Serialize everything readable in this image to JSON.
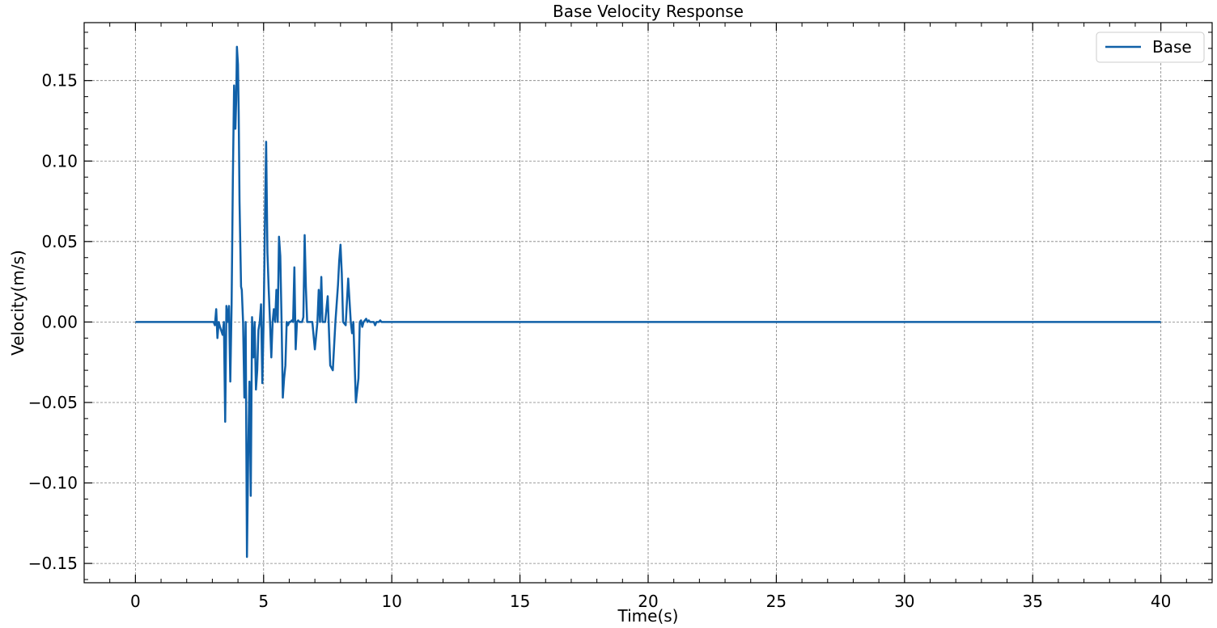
{
  "chart_data": {
    "type": "line",
    "title": "Base Velocity Response",
    "xlabel": "Time(s)",
    "ylabel": "Velocity(m/s)",
    "xlim": [
      -2,
      42
    ],
    "ylim": [
      -0.162,
      0.186
    ],
    "xticks": [
      0,
      5,
      10,
      15,
      20,
      25,
      30,
      35,
      40
    ],
    "xtick_labels": [
      "0",
      "5",
      "10",
      "15",
      "20",
      "25",
      "30",
      "35",
      "40"
    ],
    "yticks": [
      -0.15,
      -0.1,
      -0.05,
      0.0,
      0.05,
      0.1,
      0.15
    ],
    "ytick_labels": [
      "−0.15",
      "−0.10",
      "−0.05",
      "0.00",
      "0.05",
      "0.10",
      "0.15"
    ],
    "grid": true,
    "legend_position": "top-right",
    "series": [
      {
        "name": "Base",
        "color": "#1060a8",
        "x": [
          0,
          3.05,
          3.1,
          3.15,
          3.2,
          3.25,
          3.3,
          3.4,
          3.45,
          3.5,
          3.55,
          3.6,
          3.65,
          3.7,
          3.75,
          3.8,
          3.85,
          3.9,
          3.93,
          3.96,
          4.0,
          4.03,
          4.06,
          4.09,
          4.12,
          4.15,
          4.2,
          4.25,
          4.3,
          4.35,
          4.4,
          4.45,
          4.5,
          4.55,
          4.6,
          4.65,
          4.7,
          4.75,
          4.8,
          4.85,
          4.9,
          4.95,
          5.0,
          5.05,
          5.1,
          5.15,
          5.2,
          5.25,
          5.3,
          5.35,
          5.4,
          5.45,
          5.5,
          5.55,
          5.6,
          5.65,
          5.7,
          5.75,
          5.8,
          5.85,
          5.9,
          5.95,
          6.0,
          6.05,
          6.1,
          6.15,
          6.2,
          6.25,
          6.3,
          6.35,
          6.4,
          6.5,
          6.55,
          6.6,
          6.65,
          6.7,
          6.8,
          6.9,
          7.0,
          7.1,
          7.15,
          7.2,
          7.25,
          7.3,
          7.4,
          7.5,
          7.6,
          7.7,
          7.8,
          7.9,
          7.95,
          8.0,
          8.05,
          8.1,
          8.2,
          8.3,
          8.4,
          8.45,
          8.5,
          8.6,
          8.7,
          8.75,
          8.8,
          8.85,
          8.9,
          9.0,
          9.05,
          9.1,
          9.15,
          9.2,
          9.3,
          9.35,
          9.4,
          9.5,
          9.55,
          9.6,
          9.65,
          9.7,
          9.8,
          9.9,
          10.0,
          10.1,
          10.2,
          10.3,
          10.5,
          11.0,
          11.5,
          11.55,
          11.6,
          12.0,
          12.5,
          13.0,
          14.0,
          15.0,
          20.0,
          25.0,
          30.0,
          35.0,
          40.0
        ],
        "y": [
          0.0,
          0.0,
          -0.002,
          0.008,
          -0.01,
          0.0,
          -0.003,
          -0.008,
          0.0,
          -0.062,
          0.01,
          0.0,
          0.01,
          -0.037,
          0.01,
          0.09,
          0.147,
          0.12,
          0.138,
          0.171,
          0.16,
          0.13,
          0.075,
          0.05,
          0.022,
          0.02,
          0.0,
          -0.047,
          0.0,
          -0.146,
          -0.08,
          -0.037,
          -0.108,
          0.003,
          -0.022,
          0.0,
          -0.042,
          -0.03,
          -0.005,
          0.0,
          0.011,
          -0.038,
          0.001,
          0.061,
          0.112,
          0.043,
          0.02,
          0.0,
          -0.022,
          0.0,
          0.008,
          0.0,
          0.02,
          0.0,
          0.053,
          0.041,
          0.0,
          -0.047,
          -0.035,
          -0.027,
          0.0,
          -0.002,
          0.0,
          0.0,
          0.001,
          0.0,
          0.034,
          -0.017,
          0.0,
          0.001,
          0.0,
          0.0,
          0.003,
          0.054,
          0.022,
          0.0,
          0.0,
          0.0,
          -0.017,
          0.0,
          0.02,
          0.0,
          0.028,
          0.0,
          0.0,
          0.016,
          -0.027,
          -0.03,
          0.0,
          0.023,
          0.038,
          0.048,
          0.03,
          0.0,
          -0.002,
          0.027,
          0.0,
          -0.007,
          0.0,
          -0.05,
          -0.035,
          0.0,
          0.001,
          -0.003,
          0.0,
          0.002,
          0.0,
          0.001,
          0.0,
          0.0,
          0.0,
          -0.002,
          0.0,
          0.0,
          0.001,
          0.0,
          0.0,
          0.0,
          0.0,
          0.0,
          0.0,
          0.0,
          0.0,
          0.0,
          0.0,
          0.0,
          0.0,
          0.0,
          0.0,
          0.0,
          0.0,
          0.0,
          0.0,
          0.0,
          0.0,
          0.0,
          0.0,
          0.0,
          0.0
        ]
      }
    ]
  }
}
